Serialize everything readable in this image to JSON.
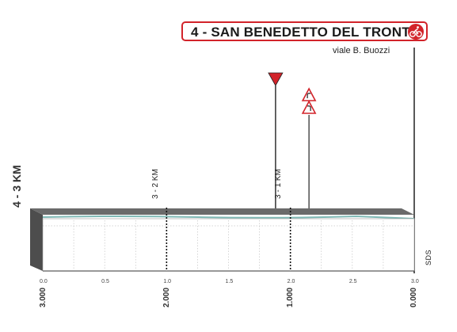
{
  "header": {
    "stage_title": "4 - SAN BENEDETTO DEL TRONTO",
    "street": "viale B. Buozzi",
    "side_title": "4 - 3 KM"
  },
  "markers": {
    "km_marks": [
      "3 - 2 KM",
      "3 - 1 KM"
    ],
    "sds_label": "SDS",
    "flamme_rouge_icon": "red-triangle-icon",
    "warning_icons": [
      "curve-warning-icon",
      "curve-warning-icon"
    ]
  },
  "colors": {
    "accent": "#d2232a",
    "profile_gray": "#9a9a9a",
    "profile_dark": "#4d4d4d",
    "water_teal": "#7fb9b5"
  },
  "chart_data": {
    "type": "area",
    "title": "4 - SAN BENEDETTO DEL TRONTO",
    "x": [
      0.0,
      0.5,
      1.0,
      1.5,
      2.0,
      2.5,
      3.0
    ],
    "xlim": [
      0.0,
      3.0
    ],
    "x_tick_labels": [
      "0.0",
      "0.5",
      "1.0",
      "1.5",
      "2.0",
      "2.5",
      "3.0"
    ],
    "remaining_distance_labels": [
      "3.000",
      "2.000",
      "1.000",
      "0.000"
    ],
    "remaining_distance_positions": [
      0.0,
      1.0,
      2.0,
      3.0
    ],
    "km_mark_positions": [
      1.0,
      2.0
    ],
    "flamme_rouge_position": 1.88,
    "warning_position": 2.15,
    "finish_position": 3.0,
    "grid": true
  }
}
